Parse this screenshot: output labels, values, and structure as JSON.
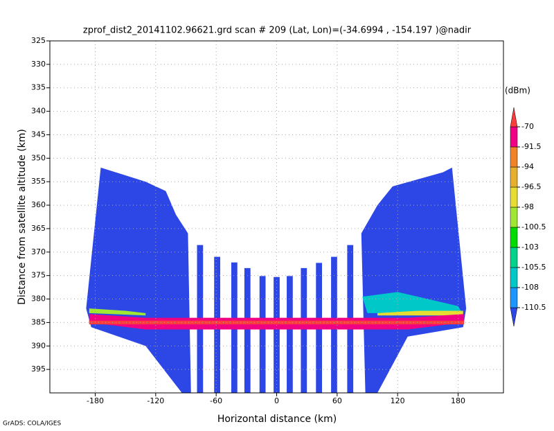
{
  "chart_data": {
    "type": "field",
    "title": "zprof_dist2_20141102.96621.grd  scan # 209  (Lat, Lon)=(-34.6994 , -154.197 )@nadir",
    "x_label": "Horizontal distance (km)",
    "y_label": "Distance from satellite altitude (km)",
    "footer": "GrADS: COLA/IGES",
    "colorbar_label": "(dBm)",
    "xlim": [
      -225,
      225
    ],
    "ylim": [
      400,
      325
    ],
    "xticks": [
      -180,
      -120,
      -60,
      0,
      60,
      120,
      180
    ],
    "yticks": [
      325,
      330,
      335,
      340,
      345,
      350,
      355,
      360,
      365,
      370,
      375,
      380,
      385,
      390,
      395
    ],
    "grid": true,
    "levels": [
      -110.5,
      -108,
      -105.5,
      -103,
      -100.5,
      -98,
      -96.5,
      -94,
      -91.5,
      -70
    ],
    "colors": [
      "#2d46e6",
      "#1e96ff",
      "#00c8c8",
      "#00d28c",
      "#00dc00",
      "#a0e632",
      "#e6dc32",
      "#e6af2d",
      "#f08228",
      "#f00082",
      "#fa3c3c"
    ],
    "regions": [
      {
        "x": [
          -174.5,
          -130,
          -110,
          -100,
          -88,
          -85,
          -94,
          -130,
          -184,
          -189
        ],
        "y": [
          352,
          355,
          357,
          362,
          366,
          400,
          400,
          390,
          386,
          382
        ],
        "value": -112
      },
      {
        "x": [
          84,
          100,
          115,
          165,
          174,
          188,
          185,
          130,
          100,
          88
        ],
        "y": [
          366,
          360,
          356,
          353,
          352,
          382,
          386,
          388,
          400,
          400
        ],
        "value": -112
      },
      {
        "x": [
          -79,
          -73,
          -73,
          -79
        ],
        "y": [
          368.5,
          368.5,
          400,
          400
        ],
        "value": -112
      },
      {
        "x": [
          -62,
          -56,
          -56,
          -62
        ],
        "y": [
          371,
          371,
          400,
          400
        ],
        "value": -112
      },
      {
        "x": [
          -45,
          -39,
          -39,
          -45
        ],
        "y": [
          372.2,
          372.2,
          400,
          400
        ],
        "value": -112
      },
      {
        "x": [
          -32,
          -26,
          -26,
          -32
        ],
        "y": [
          373.4,
          373.4,
          400,
          400
        ],
        "value": -112
      },
      {
        "x": [
          -17,
          -11,
          -11,
          -17
        ],
        "y": [
          375.1,
          375.1,
          400,
          400
        ],
        "value": -112
      },
      {
        "x": [
          -3,
          3,
          3,
          -3
        ],
        "y": [
          375.3,
          375.3,
          400,
          400
        ],
        "value": -112
      },
      {
        "x": [
          10,
          16,
          16,
          10
        ],
        "y": [
          375.1,
          375.1,
          400,
          400
        ],
        "value": -112
      },
      {
        "x": [
          24,
          30,
          30,
          24
        ],
        "y": [
          373.4,
          373.4,
          400,
          400
        ],
        "value": -112
      },
      {
        "x": [
          39,
          45,
          45,
          39
        ],
        "y": [
          372.3,
          372.3,
          400,
          400
        ],
        "value": -112
      },
      {
        "x": [
          54,
          60,
          60,
          54
        ],
        "y": [
          371,
          371,
          400,
          400
        ],
        "value": -112
      },
      {
        "x": [
          70,
          76,
          76,
          70
        ],
        "y": [
          368.5,
          368.5,
          400,
          400
        ],
        "value": -112
      },
      {
        "x": [
          85,
          120,
          150,
          180,
          184,
          120,
          90
        ],
        "y": [
          379.5,
          378.5,
          380,
          381.5,
          383,
          383,
          383
        ],
        "value": -106
      },
      {
        "x": [
          -186,
          -150,
          -130,
          -130,
          -186
        ],
        "y": [
          382,
          382.5,
          383,
          383.5,
          383
        ],
        "value": -99
      },
      {
        "x": [
          100,
          140,
          185,
          185,
          100
        ],
        "y": [
          383,
          382.5,
          382.5,
          383.5,
          383.5
        ],
        "value": -97
      },
      {
        "x": [
          -186,
          -130,
          130,
          186,
          186,
          130,
          -130,
          -186
        ],
        "y": [
          383.2,
          384,
          384,
          383.2,
          385,
          386.5,
          386.5,
          385
        ],
        "value": -80
      },
      {
        "x": [
          -186,
          186,
          186,
          -186
        ],
        "y": [
          384.6,
          384.6,
          385.4,
          385.4
        ],
        "value": -65
      }
    ]
  }
}
